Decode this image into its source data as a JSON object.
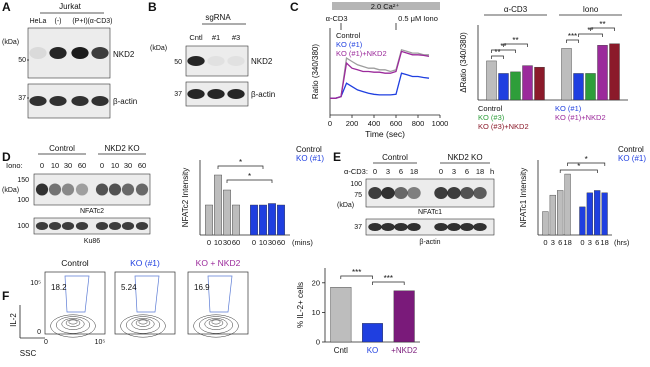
{
  "panel_labels": [
    "A",
    "B",
    "C",
    "D",
    "E",
    "F"
  ],
  "blots": {
    "A": {
      "group": "Jurkat",
      "lanes": [
        "HeLa",
        "(-)",
        "(P+I)",
        "(α-CD3)"
      ],
      "kda": "(kDa)",
      "markers": [
        50,
        37
      ],
      "bands": [
        "NKD2",
        "β-actin"
      ]
    },
    "B": {
      "group": "sgRNA",
      "lanes": [
        "Cntl",
        "#1",
        "#3"
      ],
      "kda": "(kDa)",
      "markers": [
        50,
        37
      ],
      "bands": [
        "NKD2",
        "β-actin"
      ]
    },
    "D": {
      "lane_title": "Iono:",
      "groups": [
        "Control",
        "NKD2 KO"
      ],
      "lanes": [
        0,
        10,
        30,
        60,
        0,
        10,
        30,
        60
      ],
      "kda": "(kDa)",
      "markers": [
        150,
        100,
        100
      ],
      "bands": [
        "NFATc2",
        "Ku86"
      ]
    },
    "E": {
      "lane_title": "α-CD3:",
      "groups": [
        "Control",
        "NKD2 KO"
      ],
      "lanes": [
        0,
        3,
        6,
        18,
        0,
        3,
        6,
        18
      ],
      "lane_unit": "h",
      "kda": "(kDa)",
      "markers": [
        100,
        75,
        37
      ],
      "bands": [
        "NFATc1",
        "β-actin"
      ]
    }
  },
  "flow": {
    "titles": [
      "Control",
      "KO (#1)",
      "KO + NKD2"
    ],
    "percentages": [
      18.2,
      5.24,
      16.9
    ],
    "y_label": "IL-2",
    "x_label": "SSC",
    "ticks": [
      "0",
      "10⁵"
    ]
  },
  "chart_data": [
    {
      "type": "line",
      "y_label": "Ratio (340/380)",
      "x_label": "Time (sec)",
      "x": [
        0,
        50,
        100,
        150,
        200,
        250,
        300,
        350,
        400,
        450,
        500,
        550,
        600,
        650,
        700,
        750,
        800,
        850,
        900
      ],
      "xlim": [
        0,
        1000
      ],
      "xticks": [
        0,
        200,
        400,
        600,
        800,
        1000
      ],
      "ylim": [
        0,
        2.6
      ],
      "legend": "upper left",
      "annotations": [
        "2.0 Ca²⁺",
        "α-CD3",
        "0.5 μM Iono"
      ],
      "series": [
        {
          "name": "Control",
          "color": "#9e9e9e",
          "values": [
            0.5,
            0.5,
            0.55,
            1.7,
            1.6,
            1.5,
            1.45,
            1.4,
            1.4,
            1.35,
            1.35,
            1.3,
            1.35,
            1.95,
            1.9,
            1.85,
            1.85,
            1.8,
            1.8
          ]
        },
        {
          "name": "KO (#1)",
          "color": "#1f3fe0",
          "values": [
            0.5,
            0.5,
            0.55,
            0.95,
            0.85,
            0.75,
            0.7,
            0.65,
            0.62,
            0.6,
            0.6,
            0.6,
            0.62,
            1.25,
            1.2,
            1.15,
            1.15,
            1.12,
            1.1
          ]
        },
        {
          "name": "KO (#1)+NKD2",
          "color": "#9b2a9b",
          "values": [
            0.5,
            0.5,
            0.55,
            1.55,
            1.4,
            1.35,
            1.3,
            1.3,
            1.28,
            1.28,
            1.25,
            1.25,
            1.3,
            1.9,
            1.85,
            1.8,
            1.8,
            1.78,
            1.75
          ]
        }
      ]
    },
    {
      "type": "bar",
      "y_label": "ΔRatio (340/380)",
      "categories": [
        "α-CD3",
        "Iono"
      ],
      "ylim": [
        0,
        2.4
      ],
      "series": [
        {
          "name": "Control",
          "color": "#bdbdbd",
          "values": [
            1.25,
            1.65
          ]
        },
        {
          "name": "KO (#1)",
          "color": "#1f3fe0",
          "values": [
            0.85,
            0.85
          ]
        },
        {
          "name": "KO (#3)",
          "color": "#2e9e3a",
          "values": [
            0.9,
            0.85
          ]
        },
        {
          "name": "KO (#1)+NKD2",
          "color": "#9b2a9b",
          "values": [
            1.1,
            1.75
          ]
        },
        {
          "name": "KO (#3)+NKD2",
          "color": "#8b1a2a",
          "values": [
            1.05,
            1.8
          ]
        }
      ],
      "annotations": [
        "**",
        "**",
        "**",
        "***",
        "**",
        "**"
      ]
    },
    {
      "type": "bar",
      "y_label": "NFATc2 Intensity",
      "x_unit": "(mins)",
      "categories": [
        0,
        10,
        30,
        60
      ],
      "ylim": [
        0,
        2.5
      ],
      "series": [
        {
          "name": "Control",
          "color": "#bdbdbd",
          "values": [
            1.0,
            2.0,
            1.5,
            1.0
          ]
        },
        {
          "name": "KO (#1)",
          "color": "#1f3fe0",
          "values": [
            1.0,
            1.0,
            1.05,
            1.0
          ]
        }
      ],
      "annotations": [
        "*",
        "*"
      ]
    },
    {
      "type": "bar",
      "y_label": "NFATc1 Intensity",
      "x_unit": "(hrs)",
      "categories": [
        0,
        3,
        6,
        18
      ],
      "ylim": [
        0,
        3.2
      ],
      "series": [
        {
          "name": "Control",
          "color": "#bdbdbd",
          "values": [
            1.0,
            1.7,
            1.9,
            2.6
          ]
        },
        {
          "name": "KO (#1)",
          "color": "#1f3fe0",
          "values": [
            1.2,
            1.8,
            1.9,
            1.8
          ]
        }
      ],
      "annotations": [
        "*",
        "*"
      ]
    },
    {
      "type": "bar",
      "y_label": "% IL-2+ cells",
      "categories": [
        "Cntl",
        "KO",
        "+NKD2"
      ],
      "values": [
        18.5,
        6.3,
        17.3
      ],
      "colors": [
        "#bdbdbd",
        "#1f3fe0",
        "#7a1a7a"
      ],
      "ylim": [
        0,
        25
      ],
      "yticks": [
        0,
        10,
        20
      ],
      "annotations": [
        "***",
        "***"
      ]
    }
  ]
}
